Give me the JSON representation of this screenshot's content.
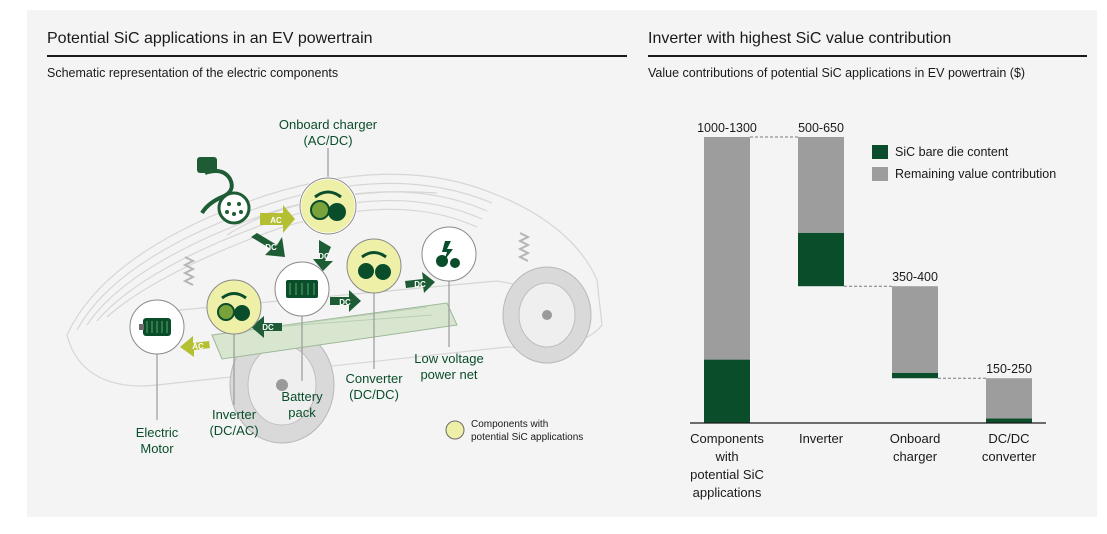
{
  "left_panel": {
    "title": "Potential SiC applications in an EV powertrain",
    "subtitle": "Schematic representation of the electric components",
    "labels": {
      "onboard_charger": [
        "Onboard charger",
        "(AC/DC)"
      ],
      "low_voltage": [
        "Low voltage",
        "power net"
      ],
      "converter": [
        "Converter",
        "(DC/DC)"
      ],
      "battery": [
        "Battery",
        "pack"
      ],
      "inverter": [
        "Inverter",
        "(DC/AC)"
      ],
      "motor": [
        "Electric",
        "Motor"
      ]
    },
    "flow_tags": {
      "ac": "AC",
      "dc": "DC"
    },
    "legend": [
      "Components with",
      "potential SiC applications"
    ],
    "colors": {
      "dark_green": "#0a4d2a",
      "mid_green": "#2c7a3f",
      "light_yellow": "#eef0a8",
      "lime": "#b5bf32"
    }
  },
  "right_panel": {
    "title": "Inverter with highest SiC value contribution",
    "subtitle": "Value contributions of potential SiC applications in EV powertrain ($)"
  },
  "chart_data": {
    "type": "bar",
    "layout": "stacked waterfall",
    "categories": [
      [
        "Components",
        "with",
        "potential SiC",
        "applications"
      ],
      [
        "Inverter"
      ],
      [
        "Onboard",
        "charger"
      ],
      [
        "DC/DC",
        "converter"
      ]
    ],
    "range_labels": [
      "1000-1300",
      "500-650",
      "350-400",
      "150-250"
    ],
    "ylim": [
      0,
      1150
    ],
    "bars": [
      {
        "base": 0,
        "sic": 255,
        "remaining": 895
      },
      {
        "base": 550,
        "sic": 215,
        "remaining": 385
      },
      {
        "base": 180,
        "sic": 22,
        "remaining": 348
      },
      {
        "base": 0,
        "sic": 18,
        "remaining": 162
      }
    ],
    "legend": [
      {
        "name": "SiC bare die content",
        "color": "#0a4d2a"
      },
      {
        "name": "Remaining value contribution",
        "color": "#9d9d9d"
      }
    ],
    "legend_position": "top-right",
    "grid": false
  }
}
